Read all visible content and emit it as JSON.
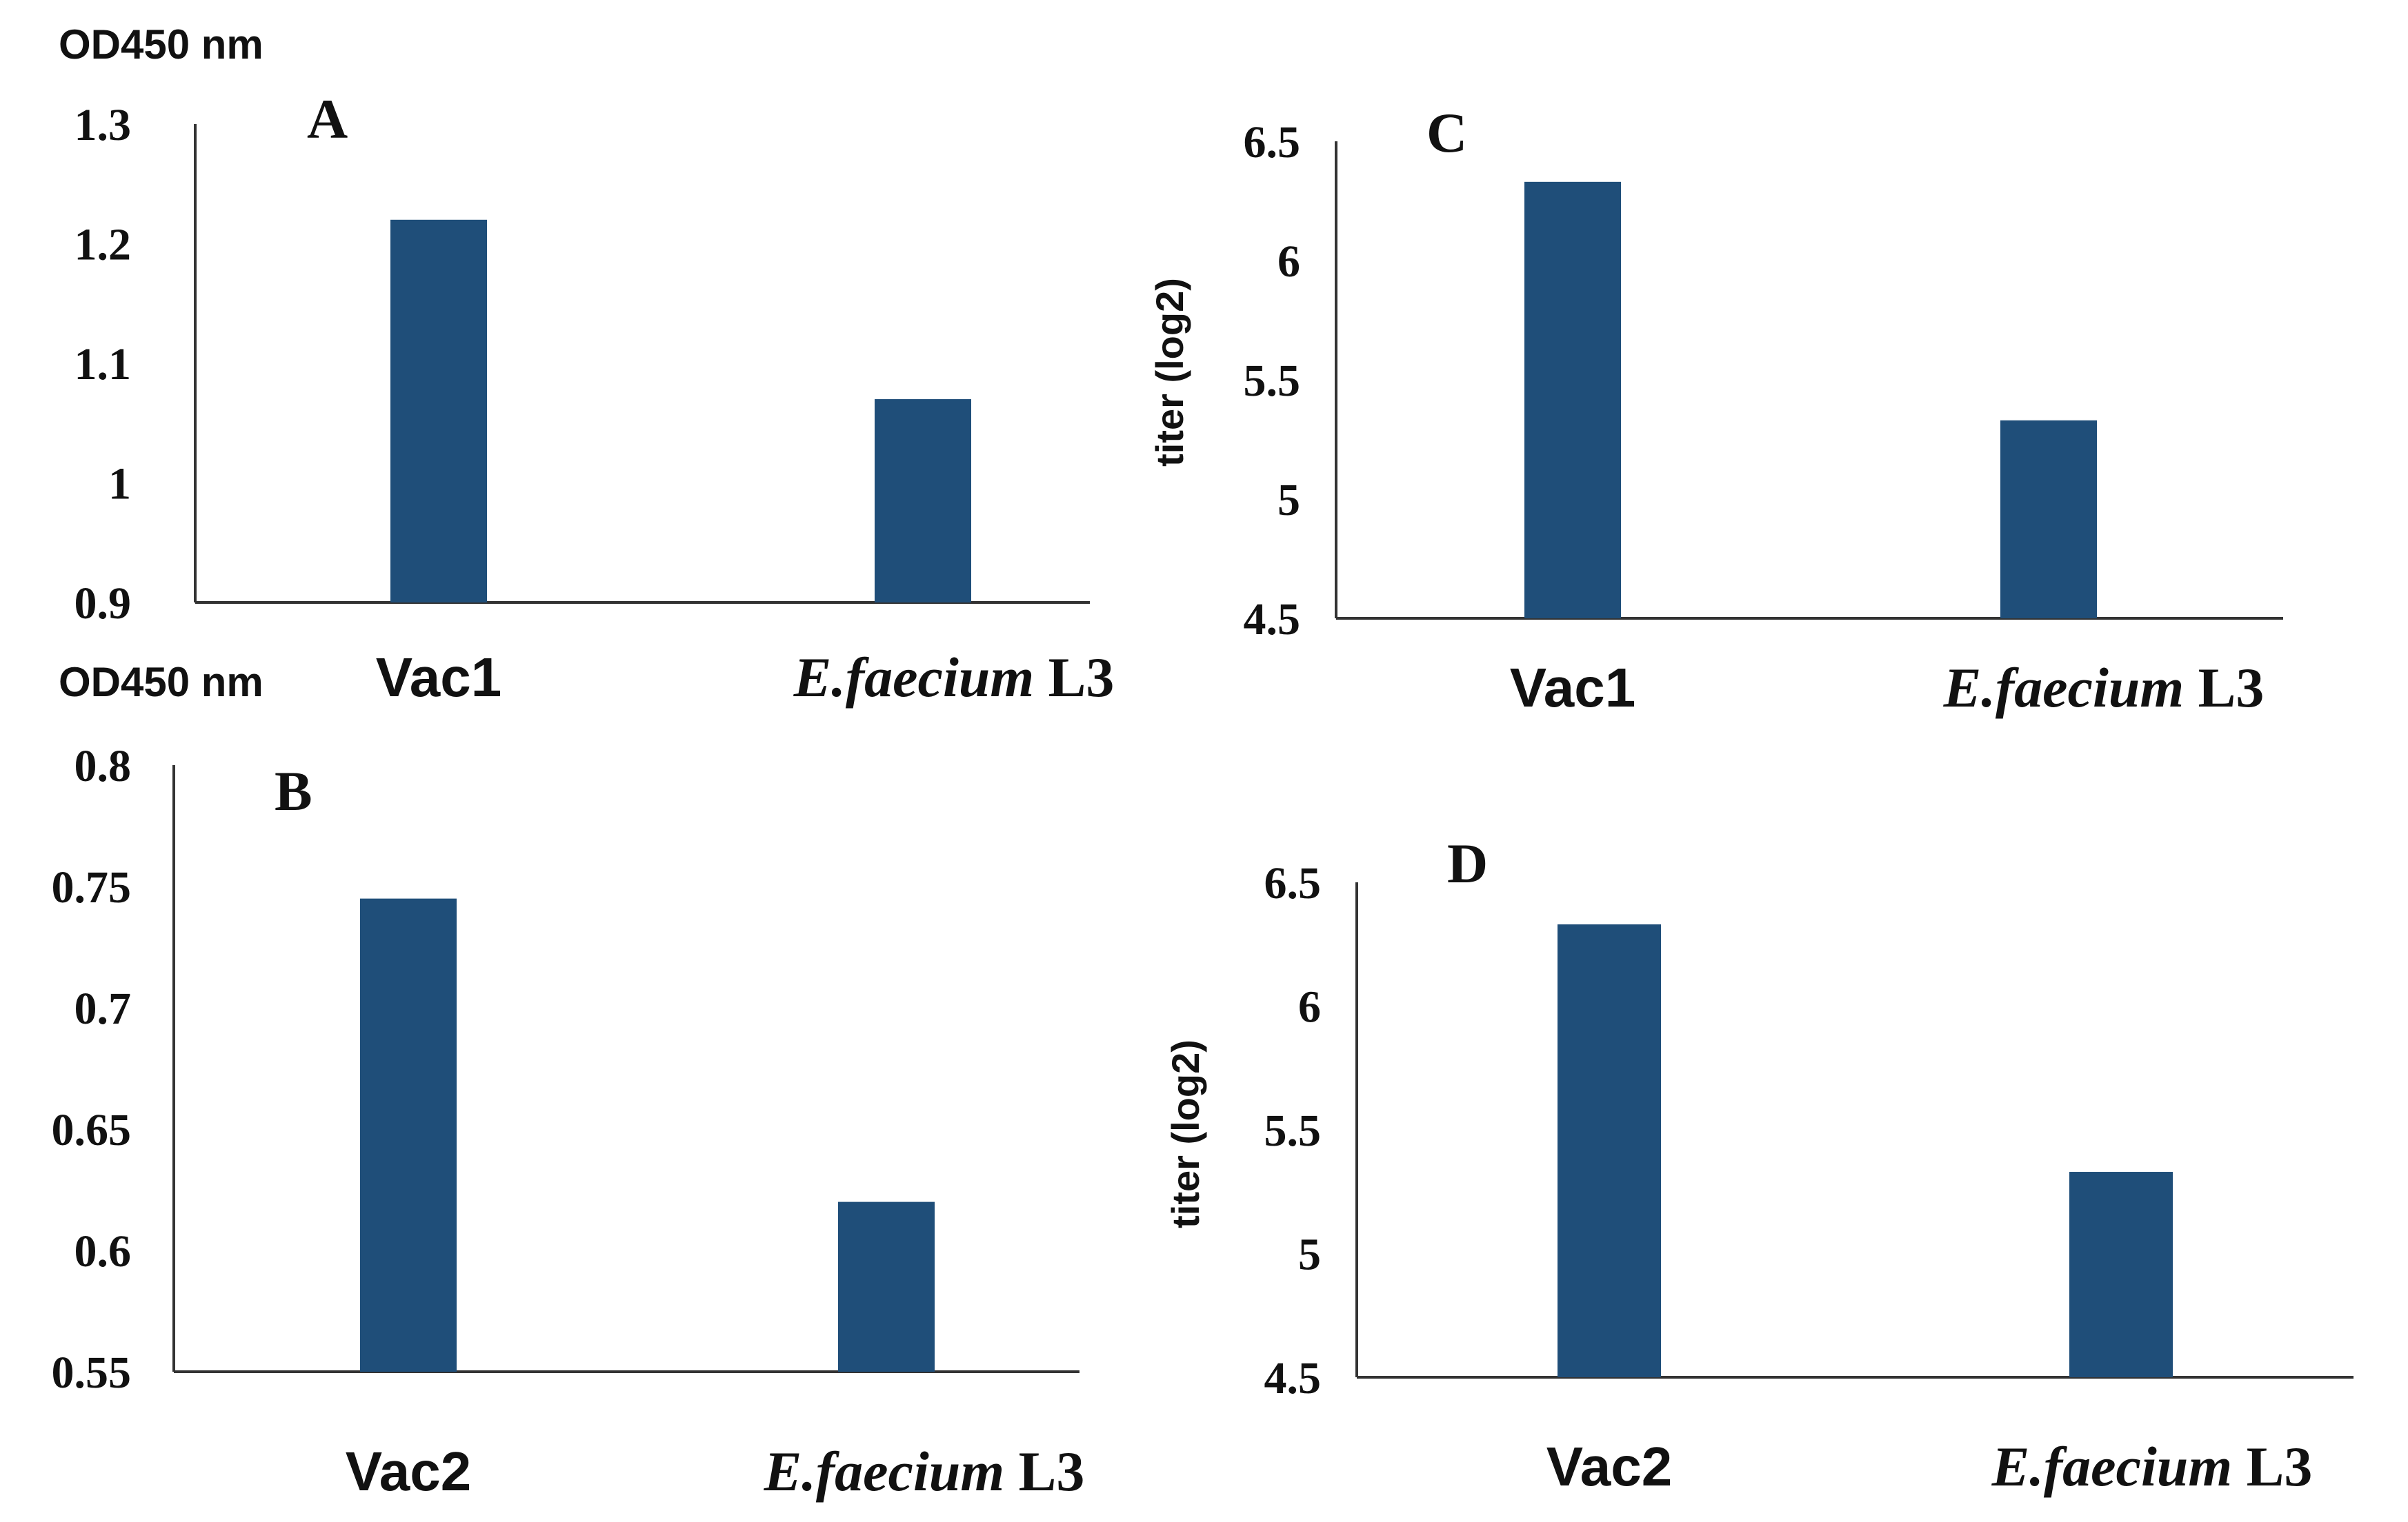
{
  "colors": {
    "bar": "#1f4e79",
    "axis": "#333333",
    "text": "#111111"
  },
  "chart_data": [
    {
      "panel": "A",
      "type": "bar",
      "title": "",
      "ylabel": "OD450 nm",
      "xlabel": "",
      "ylim": [
        0.9,
        1.3
      ],
      "yticks": [
        "1.3",
        "1.2",
        "1.1",
        "1",
        "0.9"
      ],
      "categories": [
        "Vac1",
        "E.faecium L3"
      ],
      "category_parts": [
        {
          "name": "Vac1",
          "italic": "",
          "rest": ""
        },
        {
          "name": "",
          "italic": "E.faecium",
          "rest": " L3"
        }
      ],
      "values": [
        1.22,
        1.07
      ]
    },
    {
      "panel": "B",
      "type": "bar",
      "title": "",
      "ylabel": "OD450 nm",
      "xlabel": "",
      "ylim": [
        0.55,
        0.8
      ],
      "yticks": [
        "0.8",
        "0.75",
        "0.7",
        "0.65",
        "0.6",
        "0.55"
      ],
      "categories": [
        "Vac2",
        "E.faecium L3"
      ],
      "category_parts": [
        {
          "name": "Vac2",
          "italic": "",
          "rest": ""
        },
        {
          "name": "",
          "italic": "E.faecium",
          "rest": " L3"
        }
      ],
      "values": [
        0.745,
        0.62
      ]
    },
    {
      "panel": "C",
      "type": "bar",
      "title": "",
      "ylabel": "titer (log2)",
      "xlabel": "",
      "ylim": [
        4.5,
        6.5
      ],
      "yticks": [
        "6.5",
        "6",
        "5.5",
        "5",
        "4.5"
      ],
      "categories": [
        "Vac1",
        "E.faecium L3"
      ],
      "category_parts": [
        {
          "name": "Vac1",
          "italic": "",
          "rest": ""
        },
        {
          "name": "",
          "italic": "E.faecium",
          "rest": " L3"
        }
      ],
      "values": [
        6.33,
        5.33
      ]
    },
    {
      "panel": "D",
      "type": "bar",
      "title": "",
      "ylabel": "titer (log2)",
      "xlabel": "",
      "ylim": [
        4.5,
        6.5
      ],
      "yticks": [
        "6.5",
        "6",
        "5.5",
        "5",
        "4.5"
      ],
      "categories": [
        "Vac2",
        "E.faecium L3"
      ],
      "category_parts": [
        {
          "name": "Vac2",
          "italic": "",
          "rest": ""
        },
        {
          "name": "",
          "italic": "E.faecium",
          "rest": " L3"
        }
      ],
      "values": [
        6.33,
        5.33
      ]
    }
  ]
}
